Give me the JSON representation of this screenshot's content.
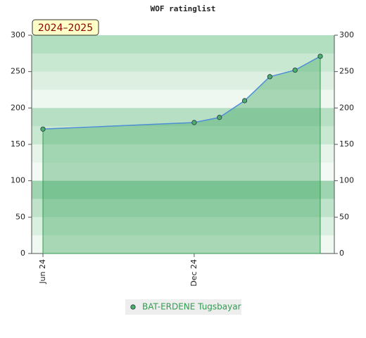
{
  "chart_data": {
    "type": "area",
    "title": "WOF ratinglist",
    "badge": "2024–2025",
    "x": [
      "2024-06",
      "2024-12",
      "2025-01",
      "2025-02",
      "2025-03",
      "2025-04",
      "2025-05"
    ],
    "xticks": [
      {
        "value": "2024-06",
        "label": "Jun 24"
      },
      {
        "value": "2024-12",
        "label": "Dec 24"
      }
    ],
    "series": [
      {
        "name": "BAT-ERDENE Tugsbayar",
        "color": "#4f8fd6",
        "marker_color": "#4caf6a",
        "values": [
          171,
          180,
          187,
          210,
          243,
          252,
          271
        ]
      }
    ],
    "ylim": [
      0,
      300
    ],
    "yticks": [
      0,
      50,
      100,
      150,
      200,
      250,
      300
    ],
    "y2lim": [
      0,
      300
    ],
    "y2ticks": [
      0,
      50,
      100,
      150,
      200,
      250,
      300
    ],
    "legend": "bottom"
  }
}
